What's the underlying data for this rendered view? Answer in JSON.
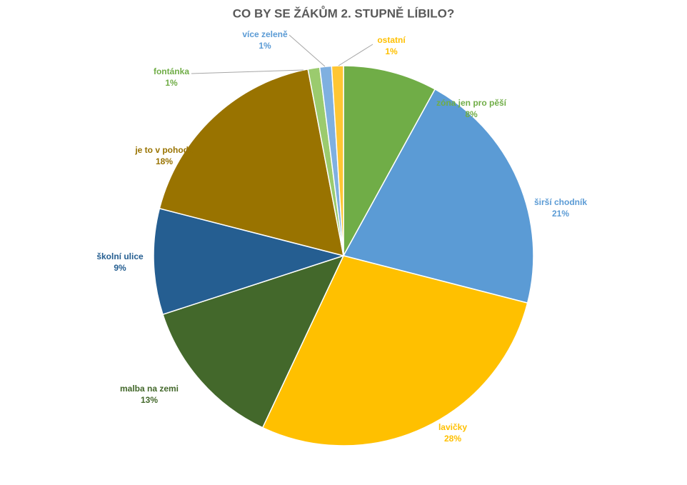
{
  "chart_data": {
    "type": "pie",
    "title": "CO BY SE ŽÁKŮM 2. STUPNĚ LÍBILO?",
    "categories": [
      "zóna jen pro pěší",
      "širší chodník",
      "lavičky",
      "malba na zemi",
      "školní ulice",
      "je to v pohodě",
      "fontánka",
      "více zeleně",
      "ostatní"
    ],
    "values": [
      8,
      21,
      28,
      13,
      9,
      18,
      1,
      1,
      1
    ],
    "value_labels": [
      "8%",
      "21%",
      "28%",
      "13%",
      "9%",
      "18%",
      "1%",
      "1%",
      "1%"
    ],
    "colors": [
      "#70ad47",
      "#5b9bd5",
      "#ffc000",
      "#43682b",
      "#255e91",
      "#997300",
      "#9bcb6e",
      "#7fb0e0",
      "#ffc633"
    ]
  }
}
